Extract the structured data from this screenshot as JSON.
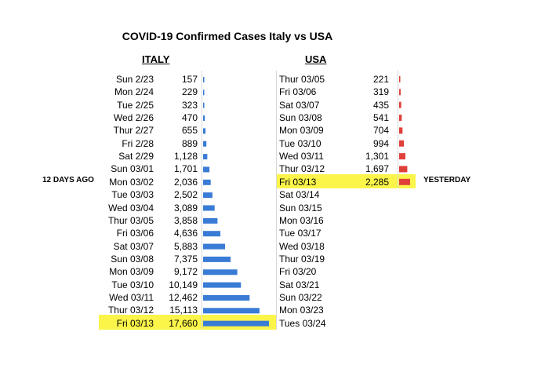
{
  "title": "COVID-19 Confirmed Cases Italy vs USA",
  "italy_header": "ITALY",
  "usa_header": "USA",
  "left_note": "12 DAYS AGO",
  "right_note": "YESTERDAY",
  "colors": {
    "italy_bar": "#3a7bd5",
    "usa_bar": "#e0403a",
    "highlight": "#fbf54a"
  },
  "chart_data": [
    {
      "type": "bar",
      "series_label": "ITALY",
      "categories": [
        "Sun 2/23",
        "Mon 2/24",
        "Tue 2/25",
        "Wed 2/26",
        "Thur 2/27",
        "Fri 2/28",
        "Sat 2/29",
        "Sun 03/01",
        "Mon 03/02",
        "Tue 03/03",
        "Wed 03/04",
        "Thur 03/05",
        "Fri 03/06",
        "Sat 03/07",
        "Sun 03/08",
        "Mon 03/09",
        "Tue 03/10",
        "Wed 03/11",
        "Thur 03/12",
        "Fri 03/13"
      ],
      "labels": [
        "157",
        "229",
        "323",
        "470",
        "655",
        "889",
        "1,128",
        "1,701",
        "2,036",
        "2,502",
        "3,089",
        "3,858",
        "4,636",
        "5,883",
        "7,375",
        "9,172",
        "10,149",
        "12,462",
        "15,113",
        "17,660"
      ],
      "values": [
        157,
        229,
        323,
        470,
        655,
        889,
        1128,
        1701,
        2036,
        2502,
        3089,
        3858,
        4636,
        5883,
        7375,
        9172,
        10149,
        12462,
        15113,
        17660
      ],
      "highlighted": [
        "Fri 03/13"
      ]
    },
    {
      "type": "bar",
      "series_label": "USA",
      "categories": [
        "Thur 03/05",
        "Fri 03/06",
        "Sat 03/07",
        "Sun 03/08",
        "Mon 03/09",
        "Tue 03/10",
        "Wed 03/11",
        "Thur 03/12",
        "Fri 03/13",
        "Sat 03/14",
        "Sun 03/15",
        "Mon 03/16",
        "Tue 03/17",
        "Wed 03/18",
        "Thur 03/19",
        "Fri 03/20",
        "Sat 03/21",
        "Sun 03/22",
        "Mon 03/23",
        "Tues 03/24"
      ],
      "labels": [
        "221",
        "319",
        "435",
        "541",
        "704",
        "994",
        "1,301",
        "1,697",
        "2,285",
        "",
        "",
        "",
        "",
        "",
        "",
        "",
        "",
        "",
        "",
        ""
      ],
      "values": [
        221,
        319,
        435,
        541,
        704,
        994,
        1301,
        1697,
        2285,
        null,
        null,
        null,
        null,
        null,
        null,
        null,
        null,
        null,
        null,
        null
      ],
      "highlighted": [
        "Fri 03/13"
      ]
    }
  ]
}
